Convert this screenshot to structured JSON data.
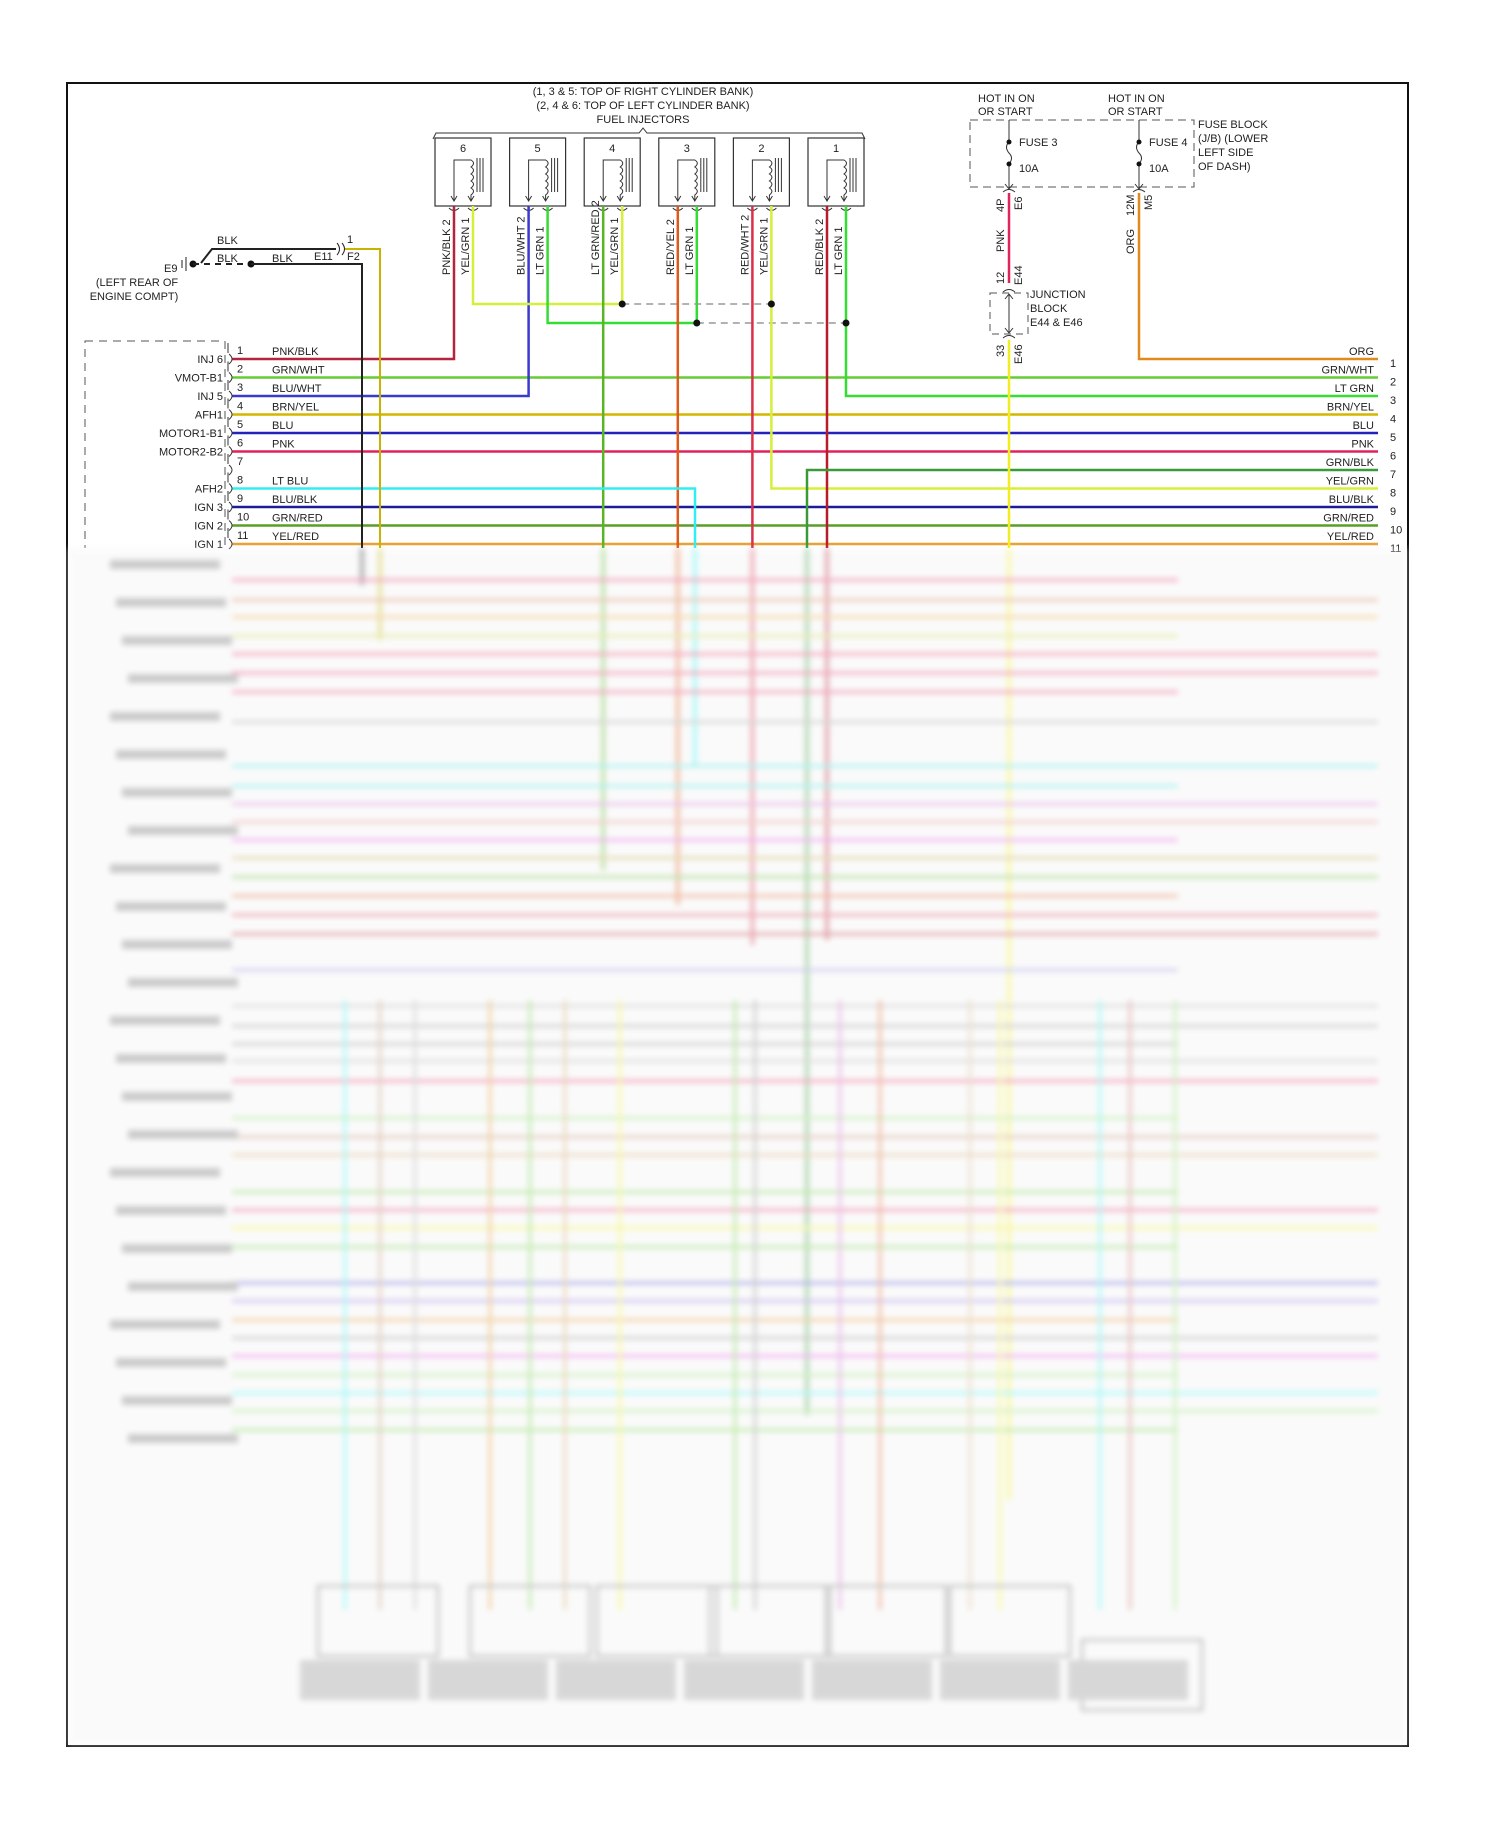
{
  "header": {
    "bank_note_1": "(1, 3 & 5: TOP OF RIGHT CYLINDER BANK)",
    "bank_note_2": "(2, 4 & 6: TOP OF LEFT CYLINDER BANK)",
    "title": "FUEL INJECTORS"
  },
  "injectors": [
    {
      "number": "6",
      "pin2_label": "PNK/BLK 2",
      "pin1_label": "YEL/GRN 1",
      "pin2_color": "#b3243f",
      "pin1_color": "#d6ef3a"
    },
    {
      "number": "5",
      "pin2_label": "BLU/WHT 2",
      "pin1_label": "LT GRN 1",
      "pin2_color": "#3a3acc",
      "pin1_color": "#33dd33"
    },
    {
      "number": "4",
      "pin2_label": "LT GRN/RED 2",
      "pin1_label": "YEL/GRN 1",
      "pin2_color": "#5ab526",
      "pin1_color": "#d6ef3a"
    },
    {
      "number": "3",
      "pin2_label": "RED/YEL 2",
      "pin1_label": "LT GRN 1",
      "pin2_color": "#dc5a1c",
      "pin1_color": "#33dd33"
    },
    {
      "number": "2",
      "pin2_label": "RED/WHT 2",
      "pin1_label": "YEL/GRN 1",
      "pin2_color": "#d8304a",
      "pin1_color": "#d6ef3a"
    },
    {
      "number": "1",
      "pin2_label": "RED/BLK 2",
      "pin1_label": "LT GRN 1",
      "pin2_color": "#b81c2c",
      "pin1_color": "#33dd33"
    }
  ],
  "ground": {
    "wire_upper": "BLK",
    "wire_lower": "BLK",
    "wire_lower_2": "BLK",
    "connector_pin": "1",
    "connector_left": "E11",
    "connector_right": "F2",
    "ground_id": "E9",
    "location_1": "(LEFT REAR OF",
    "location_2": "ENGINE COMPT)"
  },
  "fuse_block": {
    "hot_1_line1": "HOT IN ON",
    "hot_1_line2": "OR START",
    "hot_2_line1": "HOT IN ON",
    "hot_2_line2": "OR START",
    "fuse_3": "FUSE 3",
    "fuse_3_rating": "10A",
    "fuse_4": "FUSE 4",
    "fuse_4_rating": "10A",
    "label_1": "FUSE BLOCK",
    "label_2": "(J/B) (LOWER",
    "label_3": "LEFT SIDE",
    "label_4": "OF DASH)",
    "f3_conn_pin": "4P",
    "f3_conn": "E6",
    "f3_wire": "PNK",
    "f4_conn_pin": "12M",
    "f4_conn": "M5",
    "f4_wire": "ORG"
  },
  "junction_block": {
    "in_pin": "12",
    "in_conn": "E44",
    "label_1": "JUNCTION",
    "label_2": "BLOCK",
    "label_3": "E44 & E46",
    "out_pin": "33",
    "out_conn": "E46"
  },
  "connector_left": {
    "pins": [
      {
        "pin": "1",
        "signal": "INJ 6",
        "wire": "PNK/BLK"
      },
      {
        "pin": "2",
        "signal": "VMOT-B1",
        "wire": "GRN/WHT"
      },
      {
        "pin": "3",
        "signal": "INJ 5",
        "wire": "BLU/WHT"
      },
      {
        "pin": "4",
        "signal": "AFH1",
        "wire": "BRN/YEL"
      },
      {
        "pin": "5",
        "signal": "MOTOR1-B1",
        "wire": "BLU"
      },
      {
        "pin": "6",
        "signal": "MOTOR2-B2",
        "wire": "PNK"
      },
      {
        "pin": "7",
        "signal": "",
        "wire": ""
      },
      {
        "pin": "8",
        "signal": "AFH2",
        "wire": "LT BLU"
      },
      {
        "pin": "9",
        "signal": "IGN 3",
        "wire": "BLU/BLK"
      },
      {
        "pin": "10",
        "signal": "IGN 2",
        "wire": "GRN/RED"
      },
      {
        "pin": "11",
        "signal": "IGN 1",
        "wire": "YEL/RED"
      }
    ]
  },
  "right_wires": [
    {
      "pin": "1",
      "wire": "ORG"
    },
    {
      "pin": "2",
      "wire": "GRN/WHT"
    },
    {
      "pin": "3",
      "wire": "LT GRN"
    },
    {
      "pin": "4",
      "wire": "BRN/YEL"
    },
    {
      "pin": "5",
      "wire": "BLU"
    },
    {
      "pin": "6",
      "wire": "PNK"
    },
    {
      "pin": "7",
      "wire": "GRN/BLK"
    },
    {
      "pin": "8",
      "wire": "YEL/GRN"
    },
    {
      "pin": "9",
      "wire": "BLU/BLK"
    },
    {
      "pin": "10",
      "wire": "GRN/RED"
    },
    {
      "pin": "11",
      "wire": "YEL/RED"
    }
  ],
  "colors": {
    "PNK/BLK": "#b3243f",
    "GRN/WHT": "#66cc33",
    "BLU/WHT": "#3a3acc",
    "BRN/YEL": "#d2b600",
    "BLU": "#2323bb",
    "PNK": "#e0245a",
    "LT BLU": "#33eeee",
    "BLU/BLK": "#1c1c99",
    "GRN/RED": "#5a9e2a",
    "YEL/RED": "#e8a030",
    "ORG": "#e08a1e",
    "LT GRN": "#33dd33",
    "GRN/BLK": "#3a9a3a",
    "YEL/GRN": "#d6ef3a",
    "BLK": "#222222",
    "YEL": "#f0ee20"
  }
}
